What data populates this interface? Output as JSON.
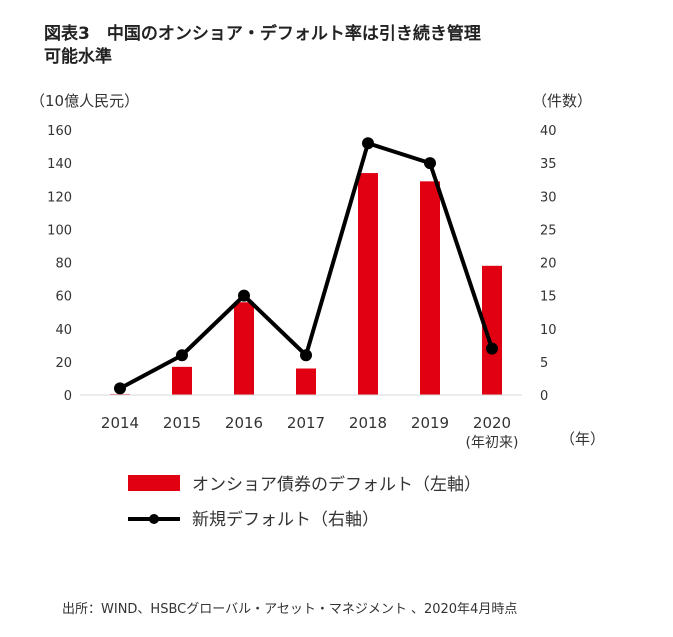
{
  "title": {
    "line1": "図表3　中国のオンショア・デフォルト率は引き続き管理",
    "line2": "可能水準"
  },
  "source": "出所：WIND、HSBCグローバル・アセット・マネジメント 、2020年4月時点",
  "chart_data": {
    "type": "bar+line",
    "categories": [
      "2014",
      "2015",
      "2016",
      "2017",
      "2018",
      "2019",
      "2020"
    ],
    "category_sublabels": [
      "",
      "",
      "",
      "",
      "",
      "",
      "(年初来)"
    ],
    "xlabel": "（年）",
    "ylabel_left": "（10億人民元）",
    "ylabel_right": "（件数）",
    "ylim_left": [
      0,
      160
    ],
    "yticks_left": [
      0,
      20,
      40,
      60,
      80,
      100,
      120,
      140,
      160
    ],
    "ylim_right": [
      0,
      40
    ],
    "yticks_right": [
      0,
      5,
      10,
      15,
      20,
      25,
      30,
      35,
      40
    ],
    "grid": false,
    "legend_placement": "bottom",
    "series": [
      {
        "name": "オンショア債券のデフォルト（左軸）",
        "type": "bar",
        "axis": "left",
        "color": "#e00012",
        "values": [
          0.5,
          17,
          56,
          16,
          134,
          129,
          78
        ]
      },
      {
        "name": "新規デフォルト（右軸）",
        "type": "line",
        "axis": "right",
        "color": "#000000",
        "values": [
          1,
          6,
          15,
          6,
          38,
          35,
          7
        ]
      }
    ]
  }
}
